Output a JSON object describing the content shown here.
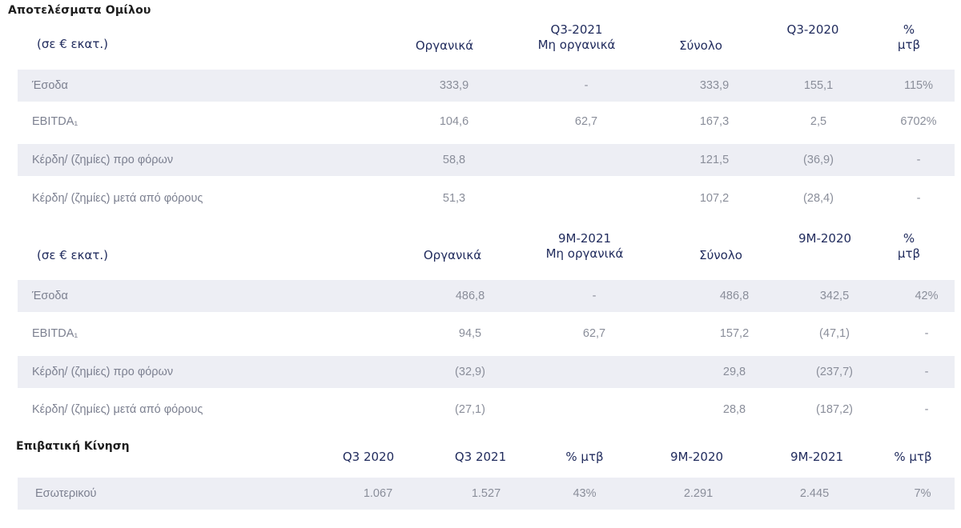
{
  "title": "Αποτελέσματα Ομίλου",
  "q3": {
    "headers": {
      "label": "(σε € εκατ.)",
      "organic": "Οργανικά",
      "nonorganic_l1": "Q3-2021",
      "nonorganic_l2": "Μη οργανικά",
      "total": "Σύνολο",
      "prior": "Q3-2020",
      "pct_l1": "%",
      "pct_l2": "μτβ"
    },
    "rows": [
      {
        "label": "Έσοδα",
        "organic": "333,9",
        "nonorganic": "-",
        "total": "333,9",
        "prior": "155,1",
        "pct": "115%"
      },
      {
        "label": "EBITDA₁",
        "organic": "104,6",
        "nonorganic": "62,7",
        "total": "167,3",
        "prior": "2,5",
        "pct": "6702%"
      },
      {
        "label": "Κέρδη/ (ζημίες) προ φόρων",
        "organic": "58,8",
        "nonorganic": "",
        "total": "121,5",
        "prior": "(36,9)",
        "pct": "-"
      },
      {
        "label": "Κέρδη/ (ζημίες) μετά από φόρους",
        "organic": "51,3",
        "nonorganic": "",
        "total": "107,2",
        "prior": "(28,4)",
        "pct": "-"
      }
    ]
  },
  "m9": {
    "headers": {
      "label": "(σε € εκατ.)",
      "organic": "Οργανικά",
      "nonorganic_l1": "9M-2021",
      "nonorganic_l2": "Μη οργανικά",
      "total": "Σύνολο",
      "prior": "9M-2020",
      "pct_l1": "%",
      "pct_l2": "μτβ"
    },
    "rows": [
      {
        "label": "Έσοδα",
        "organic": "486,8",
        "nonorganic": "-",
        "total": "486,8",
        "prior": "342,5",
        "pct": "42%"
      },
      {
        "label": "EBITDA₁",
        "organic": "94,5",
        "nonorganic": "62,7",
        "total": "157,2",
        "prior": "(47,1)",
        "pct": "-"
      },
      {
        "label": "Κέρδη/ (ζημίες) προ φόρων",
        "organic": "(32,9)",
        "nonorganic": "",
        "total": "29,8",
        "prior": "(237,7)",
        "pct": "-"
      },
      {
        "label": "Κέρδη/ (ζημίες) μετά από φόρους",
        "organic": "(27,1)",
        "nonorganic": "",
        "total": "28,8",
        "prior": "(187,2)",
        "pct": "-"
      }
    ]
  },
  "traffic": {
    "title": "Επιβατική Κίνηση",
    "headers": [
      "Q3 2020",
      "Q3 2021",
      "% μτβ",
      "9M-2020",
      "9M-2021",
      "% μτβ"
    ],
    "rows": [
      {
        "label": "Εσωτερικού",
        "values": [
          "1.067",
          "1.527",
          "43%",
          "2.291",
          "2.445",
          "7%"
        ]
      }
    ]
  }
}
